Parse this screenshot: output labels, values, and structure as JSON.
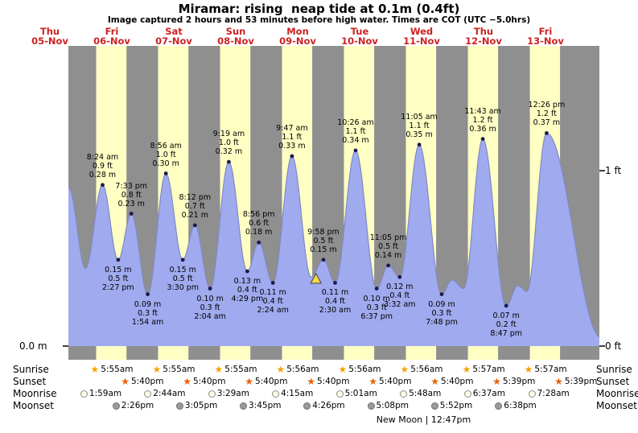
{
  "colors": {
    "day_band": "#ffffc4",
    "night_band": "#8f8f8f",
    "tide_fill": "#a0aaee",
    "tide_line": "#8089c4",
    "date_red": "#cc2222",
    "marker_fill": "#f7d845",
    "dot": "#1a1a4e",
    "sunrise_icon": "#f5a300",
    "sunset_icon": "#e8610a",
    "moonrise_icon": "#fffdea",
    "moonset_icon": "#9a9a9a"
  },
  "chart_data": {
    "type": "area",
    "title": "Miramar: rising  neap tide at 0.1m (0.4ft)",
    "subtitle": "Image captured 2 hours and 53 minutes before high water. Times are COT (UTC −5.0hrs)",
    "y_axis": {
      "left_label": "0.0 m",
      "right_labels": [
        "1 ft",
        "0 ft"
      ]
    },
    "days": [
      {
        "weekday": "Thu",
        "date": "05-Nov"
      },
      {
        "weekday": "Fri",
        "date": "06-Nov"
      },
      {
        "weekday": "Sat",
        "date": "07-Nov"
      },
      {
        "weekday": "Sun",
        "date": "08-Nov"
      },
      {
        "weekday": "Mon",
        "date": "09-Nov"
      },
      {
        "weekday": "Tue",
        "date": "10-Nov"
      },
      {
        "weekday": "Wed",
        "date": "11-Nov"
      },
      {
        "weekday": "Thu",
        "date": "12-Nov"
      },
      {
        "weekday": "Fri",
        "date": "13-Nov"
      }
    ],
    "tide_events": [
      {
        "day": 0,
        "hour": 19.3,
        "type": "high",
        "m_est": 0.275
      },
      {
        "day": 1,
        "hour": 1.8,
        "type": "low",
        "m_est": 0.135
      },
      {
        "day": 1,
        "time": "8:24 am",
        "type": "high",
        "ft_label": "0.9 ft",
        "m_label": "0.28 m"
      },
      {
        "day": 1,
        "time": "2:27 pm",
        "type": "low",
        "ft_label": "0.5 ft",
        "m_label": "0.15 m"
      },
      {
        "day": 1,
        "time": "7:33 pm",
        "type": "high",
        "ft_label": "0.8 ft",
        "m_label": "0.23 m"
      },
      {
        "day": 2,
        "time": "1:54 am",
        "type": "low",
        "ft_label": "0.3 ft",
        "m_label": "0.09 m"
      },
      {
        "day": 2,
        "time": "8:56 am",
        "type": "high",
        "ft_label": "1.0 ft",
        "m_label": "0.30 m"
      },
      {
        "day": 2,
        "time": "3:30 pm",
        "type": "low",
        "ft_label": "0.5 ft",
        "m_label": "0.15 m"
      },
      {
        "day": 2,
        "time": "8:12 pm",
        "type": "high",
        "ft_label": "0.7 ft",
        "m_label": "0.21 m"
      },
      {
        "day": 3,
        "time": "2:04 am",
        "type": "low",
        "ft_label": "0.3 ft",
        "m_label": "0.10 m"
      },
      {
        "day": 3,
        "time": "9:19 am",
        "type": "high",
        "ft_label": "1.0 ft",
        "m_label": "0.32 m"
      },
      {
        "day": 3,
        "time": "4:29 pm",
        "type": "low",
        "ft_label": "0.4 ft",
        "m_label": "0.13 m"
      },
      {
        "day": 3,
        "time": "8:56 pm",
        "type": "high",
        "ft_label": "0.6 ft",
        "m_label": "0.18 m"
      },
      {
        "day": 4,
        "time": "2:24 am",
        "type": "low",
        "ft_label": "0.4 ft",
        "m_label": "0.11 m"
      },
      {
        "day": 4,
        "time": "9:47 am",
        "type": "high",
        "ft_label": "1.1 ft",
        "m_label": "0.33 m"
      },
      {
        "day": 4,
        "hour": 17.2,
        "type": "low",
        "m_est": 0.12
      },
      {
        "day": 4,
        "time": "9:58 pm",
        "type": "high",
        "ft_label": "0.5 ft",
        "m_label": "0.15 m"
      },
      {
        "day": 5,
        "time": "2:30 am",
        "type": "low",
        "ft_label": "0.4 ft",
        "m_label": "0.11 m"
      },
      {
        "day": 5,
        "time": "10:26 am",
        "type": "high",
        "ft_label": "1.1 ft",
        "m_label": "0.34 m"
      },
      {
        "day": 5,
        "time": "6:37 pm",
        "type": "low",
        "ft_label": "0.3 ft",
        "m_label": "0.10 m"
      },
      {
        "day": 5,
        "time": "11:05 pm",
        "type": "high",
        "ft_label": "0.5 ft",
        "m_label": "0.14 m"
      },
      {
        "day": 6,
        "time": "3:32 am",
        "type": "low",
        "ft_label": "0.4 ft",
        "m_label": "0.12 m"
      },
      {
        "day": 6,
        "time": "11:05 am",
        "type": "high",
        "ft_label": "1.1 ft",
        "m_label": "0.35 m"
      },
      {
        "day": 6,
        "time": "7:48 pm",
        "type": "low",
        "ft_label": "0.3 ft",
        "m_label": "0.09 m"
      },
      {
        "day": 6,
        "hour": 23.8,
        "type": "high",
        "m_est": 0.115
      },
      {
        "day": 7,
        "hour": 4.3,
        "type": "low",
        "m_est": 0.1
      },
      {
        "day": 7,
        "time": "11:43 am",
        "type": "high",
        "ft_label": "1.2 ft",
        "m_label": "0.36 m"
      },
      {
        "day": 7,
        "time": "8:47 pm",
        "type": "low",
        "ft_label": "0.2 ft",
        "m_label": "0.07 m"
      },
      {
        "day": 8,
        "hour": 1.3,
        "type": "high",
        "m_est": 0.105
      },
      {
        "day": 8,
        "hour": 4.8,
        "type": "low",
        "m_est": 0.095
      },
      {
        "day": 8,
        "time": "12:26 pm",
        "type": "high",
        "ft_label": "1.2 ft",
        "m_label": "0.37 m"
      },
      {
        "day": 9,
        "hour": 9.5,
        "type": "low",
        "m_est": 0.015
      }
    ],
    "current_time_marker": {
      "day": 4,
      "time": "7:05pm"
    },
    "astro_rows": [
      {
        "name": "Sunrise",
        "icon": "sunrise-icon",
        "start_day": 1,
        "times": [
          "5:55am",
          "5:55am",
          "5:55am",
          "5:56am",
          "5:56am",
          "5:56am",
          "5:57am",
          "5:57am"
        ]
      },
      {
        "name": "Sunset",
        "icon": "sunset-icon",
        "start_day": 1,
        "times": [
          "5:40pm",
          "5:40pm",
          "5:40pm",
          "5:40pm",
          "5:40pm",
          "5:40pm",
          "5:39pm",
          "5:39pm"
        ]
      },
      {
        "name": "Moonrise",
        "icon": "moonrise-icon",
        "start_day": 1,
        "times": [
          "1:59am",
          "2:44am",
          "3:29am",
          "4:15am",
          "5:01am",
          "5:48am",
          "6:37am",
          "7:28am"
        ]
      },
      {
        "name": "Moonset",
        "icon": "moonset-icon",
        "start_day": 1,
        "times": [
          "2:26pm",
          "3:05pm",
          "3:45pm",
          "4:26pm",
          "5:08pm",
          "5:52pm",
          "6:38pm"
        ]
      }
    ],
    "moon_phase": {
      "label": "New Moon | 12:47pm",
      "day": 6,
      "time": "12:47pm"
    }
  }
}
